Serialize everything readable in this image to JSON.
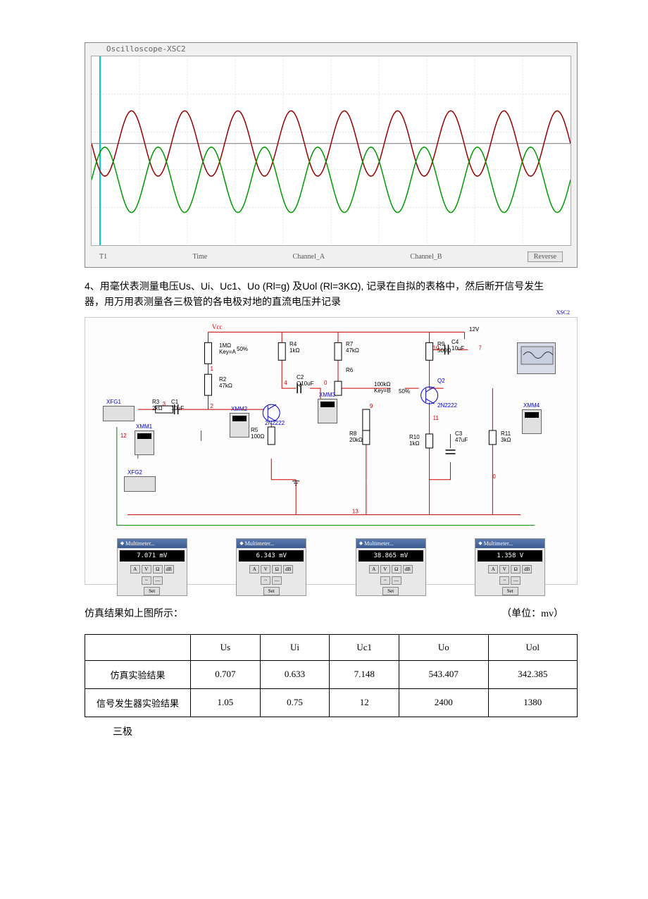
{
  "oscilloscope": {
    "window_title": "Oscilloscope-XSC2",
    "time_label": "Time",
    "channel_a_label": "Channel_A",
    "channel_b_label": "Channel_B",
    "reverse_label": "Reverse",
    "t1_label": "T1",
    "wave_a_color": "#990000",
    "wave_b_color": "#009900",
    "grid_color": "#cccccc",
    "bg_color": "#ffffff",
    "cycles": 9
  },
  "text": {
    "paragraph1": "4、用毫伏表测量电压Us、Ui、Uc1、Uo (Rl=g) 及Uol (Rl=3KΩ), 记录在自拟的表格中，然后断开信号发生器，用万用表测量各三极管的各电极对地的直流电压并记录",
    "result_caption_left": "仿真结果如上图所示：",
    "result_caption_right": "（单位：mv）",
    "after_table": "三极"
  },
  "circuit": {
    "vcc_top": "Vcc",
    "voltage": "12V",
    "components": {
      "r1": {
        "label": "1MΩ",
        "sub": "Key=A",
        "pct": "50%"
      },
      "r2": {
        "label": "R2",
        "val": "47kΩ"
      },
      "r3": {
        "label": "R3",
        "val": "2kΩ"
      },
      "r4": {
        "label": "R4",
        "val": "1kΩ"
      },
      "r5": {
        "label": "R5",
        "val": "100Ω"
      },
      "r6": {
        "label": "R6"
      },
      "r7": {
        "label": "R7",
        "val": "47kΩ"
      },
      "r8": {
        "label": "R8",
        "val": "20kΩ"
      },
      "r9": {
        "label": "R9",
        "val": "500Ω"
      },
      "r10": {
        "label": "R10",
        "val": "1kΩ"
      },
      "r11": {
        "label": "R11",
        "val": "3kΩ"
      },
      "c1": {
        "label": "C1",
        "val": "10uF"
      },
      "c2": {
        "label": "C2",
        "val": "Q10uF"
      },
      "c3": {
        "label": "C3",
        "val": "47uF"
      },
      "c4": {
        "label": "C4",
        "val": "10uF"
      },
      "pot": {
        "label": "100kΩ",
        "sub": "Key=B",
        "pct": "50%"
      },
      "q1": {
        "label": "2N2222"
      },
      "q2": {
        "label": "Q2",
        "model": "2N2222"
      }
    },
    "instruments": {
      "xfg1": "XFG1",
      "xfg2": "XFG2",
      "xmm1": "XMM1",
      "xmm2": "XMM2",
      "xmm3": "XMM3",
      "xmm4": "XMM4",
      "xsc2": "XSC2"
    },
    "wire_colors": {
      "red": "#cc0000",
      "green": "#008800",
      "blue": "#0000cc",
      "black": "#000000"
    }
  },
  "meters": [
    {
      "title": "Multimeter...",
      "value": "7.071 mV"
    },
    {
      "title": "Multimeter...",
      "value": "6.343 mV"
    },
    {
      "title": "Multimeter...",
      "value": "38.865 mV"
    },
    {
      "title": "Multimeter...",
      "value": "1.358 V"
    }
  ],
  "meter_buttons": [
    "A",
    "V",
    "Ω",
    "dB"
  ],
  "meter_wave_buttons": [
    "~",
    "—"
  ],
  "meter_set": "Set",
  "table": {
    "headers": [
      "",
      "Us",
      "Ui",
      "Uc1",
      "Uo",
      "Uol"
    ],
    "rows": [
      {
        "label": "仿真实验结果",
        "values": [
          "0.707",
          "0.633",
          "7.148",
          "543.407",
          "342.385"
        ]
      },
      {
        "label": "信号发生器实验结果",
        "values": [
          "1.05",
          "0.75",
          "12",
          "2400",
          "1380"
        ]
      }
    ]
  }
}
